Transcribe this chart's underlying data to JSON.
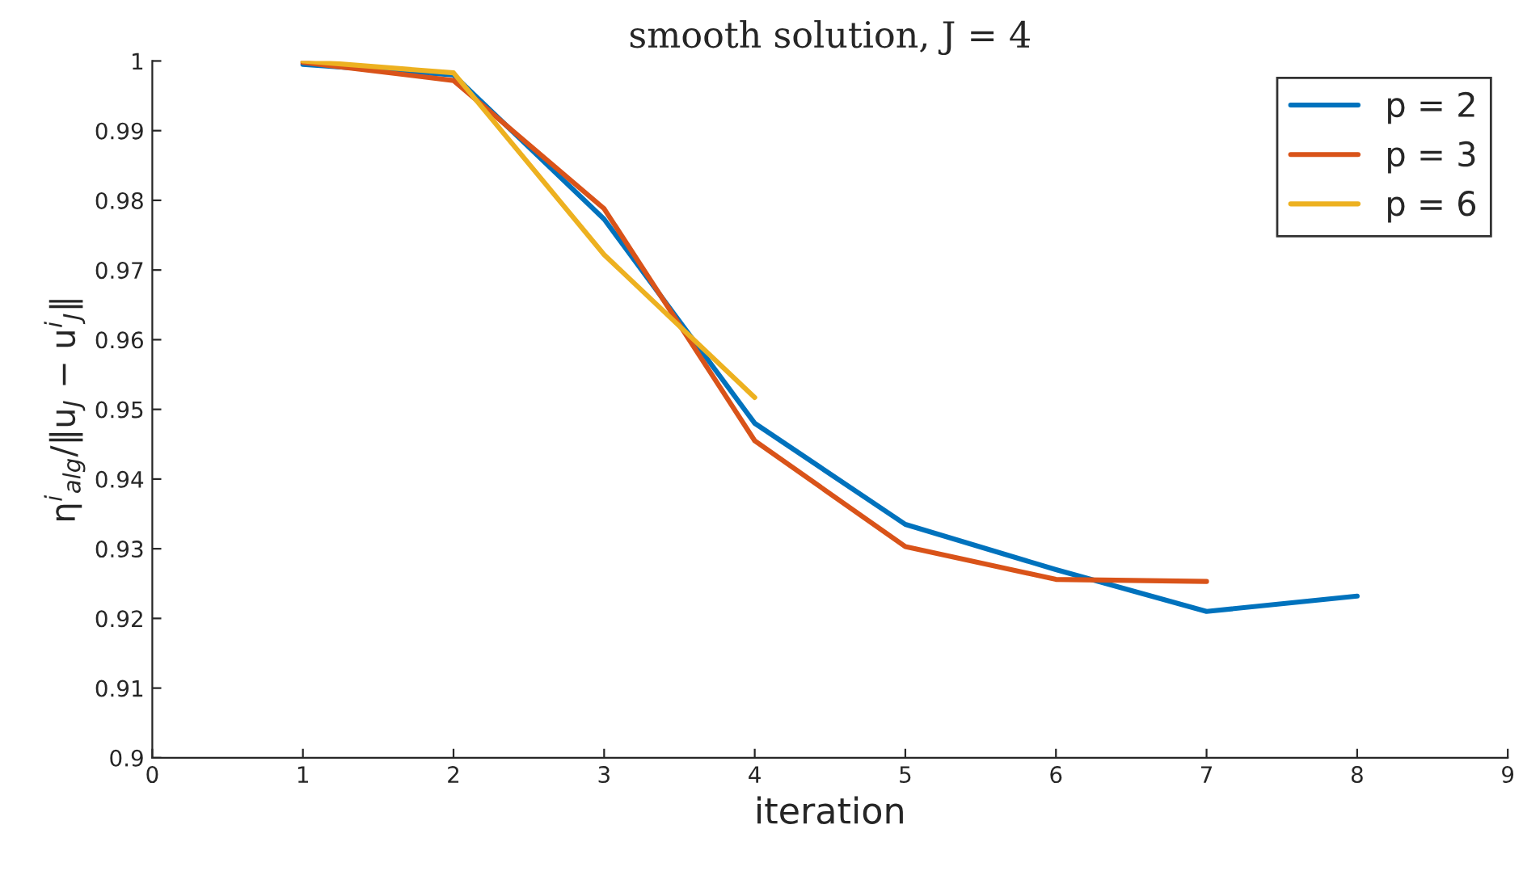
{
  "chart_data": {
    "type": "line",
    "title": "smooth solution, J = 4",
    "xlabel": "iteration",
    "ylabel": "η$^{i}$$_{alg}$/‖u$_{J}$ − u$^{i}$$_{J}$‖",
    "series": [
      {
        "name": "p = 2",
        "color": "#0072bd",
        "x": [
          1,
          2,
          3,
          4,
          5,
          6,
          7,
          8
        ],
        "values": [
          0.9995,
          0.998,
          0.9773,
          0.948,
          0.9335,
          0.927,
          0.921,
          0.9232
        ]
      },
      {
        "name": "p = 3",
        "color": "#d95319",
        "x": [
          1,
          2,
          3,
          4,
          5,
          6,
          7
        ],
        "values": [
          0.9998,
          0.9972,
          0.9788,
          0.9455,
          0.9303,
          0.9256,
          0.9253
        ]
      },
      {
        "name": "p = 6",
        "color": "#edb120",
        "x": [
          1,
          2,
          3,
          4
        ],
        "values": [
          1.0,
          0.9983,
          0.9722,
          0.9517
        ]
      }
    ],
    "xlim": [
      0,
      9
    ],
    "xticks": [
      0,
      1,
      2,
      3,
      4,
      5,
      6,
      7,
      8,
      9
    ],
    "ylim": [
      0.9,
      1
    ],
    "yticks": [
      0.9,
      0.91,
      0.92,
      0.93,
      0.94,
      0.95,
      0.96,
      0.97,
      0.98,
      0.99,
      1
    ],
    "grid": false,
    "legend": "top right",
    "marker": "none",
    "line_style": "solid"
  }
}
